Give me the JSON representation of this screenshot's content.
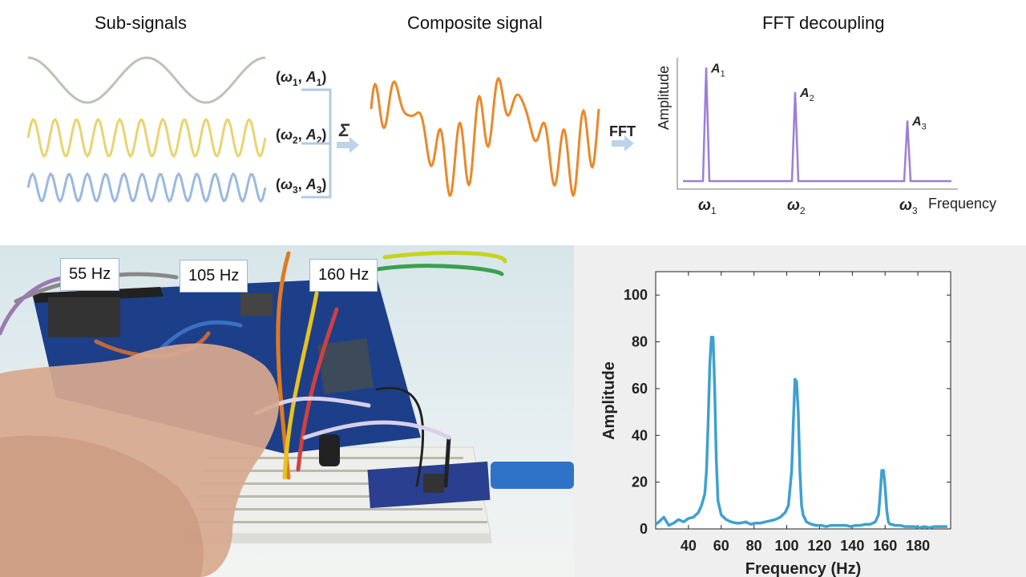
{
  "diagram": {
    "sub_signals_title": "Sub-signals",
    "composite_title": "Composite signal",
    "fft_title": "FFT decoupling",
    "signals": [
      {
        "omega": "ω",
        "idx": "1",
        "amp": "A",
        "color": "#b9c4b4",
        "cycles": 2
      },
      {
        "omega": "ω",
        "idx": "2",
        "amp": "A",
        "color": "#e8d46e",
        "cycles": 11
      },
      {
        "omega": "ω",
        "idx": "3",
        "amp": "A",
        "color": "#9ab9df",
        "cycles": 13
      }
    ],
    "sum_symbol": "Σ",
    "fft_label": "FFT",
    "spectrum": {
      "ylabel": "Amplitude",
      "xlabel": "Frequency",
      "peaks": [
        {
          "label": "A",
          "idx": "1",
          "omega": "ω",
          "rel_height": 0.92
        },
        {
          "label": "A",
          "idx": "2",
          "omega": "ω",
          "rel_height": 0.72
        },
        {
          "label": "A",
          "idx": "3",
          "omega": "ω",
          "rel_height": 0.49
        }
      ]
    },
    "composite_color": "#e8892a",
    "spectrum_color": "#9b7fd6",
    "arrow_color": "#bcd3e8"
  },
  "photo": {
    "labels": [
      "55 Hz",
      "105 Hz",
      "160 Hz"
    ]
  },
  "chart_data": {
    "type": "line",
    "xlabel": "Frequency (Hz)",
    "ylabel": "Amplitude",
    "xlim": [
      20,
      200
    ],
    "ylim": [
      0,
      110
    ],
    "xticks": [
      40,
      60,
      80,
      100,
      120,
      140,
      160,
      180
    ],
    "yticks": [
      0,
      20,
      40,
      60,
      80,
      100
    ],
    "grid": false,
    "color": "#3fa0cf",
    "x": [
      20,
      22,
      25,
      28,
      31,
      34,
      37,
      40,
      43,
      46,
      48,
      50,
      51,
      52,
      53,
      54,
      55,
      56,
      57,
      58,
      60,
      63,
      66,
      69,
      72,
      75,
      78,
      81,
      84,
      87,
      90,
      93,
      96,
      99,
      101,
      103,
      104,
      105,
      106,
      107,
      108,
      109,
      110,
      112,
      115,
      118,
      121,
      124,
      127,
      130,
      133,
      136,
      139,
      142,
      145,
      148,
      151,
      154,
      156,
      157,
      158,
      159,
      160,
      161,
      162,
      163,
      164,
      166,
      169,
      172,
      175,
      178,
      181,
      184,
      187,
      190,
      193,
      196,
      198
    ],
    "y": [
      2,
      3,
      5,
      1.5,
      2.5,
      4,
      3,
      4.5,
      5,
      7,
      10,
      15,
      25,
      45,
      70,
      82,
      82,
      60,
      30,
      12,
      6,
      4,
      3,
      2.5,
      2.5,
      3,
      2,
      2.5,
      2.5,
      3,
      3.5,
      4,
      5,
      7,
      10,
      25,
      45,
      64,
      63,
      50,
      25,
      10,
      6,
      3,
      2,
      1.5,
      1.5,
      1,
      1.5,
      1.5,
      1.5,
      1.5,
      1,
      1.5,
      1.5,
      2,
      2,
      3,
      6,
      15,
      25,
      25,
      18,
      8,
      3,
      2,
      2,
      1.5,
      1.5,
      1,
      1,
      1,
      0.5,
      1,
      0.5,
      1,
      1,
      1,
      1
    ]
  }
}
